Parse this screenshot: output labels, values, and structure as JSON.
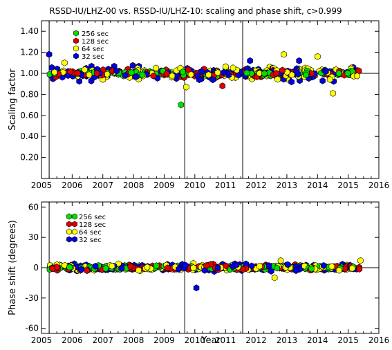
{
  "chart_data": {
    "title": "RSSD-IU/LHZ-00 vs. RSSD-IU/LHZ-10: scaling and phase shift, c>0.999",
    "xlabel": "Year",
    "x_range": [
      2005.0,
      2016.0
    ],
    "x_ticks": [
      2005,
      2006,
      2007,
      2008,
      2009,
      2010,
      2011,
      2012,
      2013,
      2014,
      2015,
      2016
    ],
    "x_tick_labels": [
      "2005",
      "2006",
      "2007",
      "2008",
      "2009",
      "2010",
      "2011",
      "2012",
      "2013",
      "2014",
      "2015",
      "2016"
    ],
    "event_lines_x": [
      2005.25,
      2009.67,
      2011.56
    ],
    "data_x_range": [
      2005.25,
      2015.4
    ],
    "series_colors": {
      "256 sec": "#00e000",
      "128 sec": "#e00000",
      "64 sec": "#ffff00",
      "32 sec": "#0000e0"
    },
    "legend_order": [
      "256 sec",
      "128 sec",
      "64 sec",
      "32 sec"
    ],
    "legend_labels": [
      "256 sec",
      "128 sec",
      "64 sec",
      "32 sec"
    ],
    "panels": [
      {
        "name": "scaling",
        "type": "scatter",
        "ylabel": "Scaling factor",
        "ylim": [
          0.0,
          1.5
        ],
        "y_ticks": [
          0.2,
          0.4,
          0.6,
          0.8,
          1.0,
          1.2,
          1.4
        ],
        "y_tick_labels": [
          "0.20",
          "0.40",
          "0.60",
          "0.80",
          "1.00",
          "1.20",
          "1.40"
        ],
        "reference_line": 1.0,
        "typical_values": {
          "256 sec": [
            0.97,
            1.03
          ],
          "128 sec": [
            0.95,
            1.05
          ],
          "64 sec": [
            0.92,
            1.08
          ],
          "32 sec": [
            0.9,
            1.1
          ]
        },
        "outliers": [
          {
            "series": "32 sec",
            "x": 2005.25,
            "y": 1.18
          },
          {
            "series": "64 sec",
            "x": 2005.75,
            "y": 1.1
          },
          {
            "series": "256 sec",
            "x": 2009.55,
            "y": 0.7
          },
          {
            "series": "64 sec",
            "x": 2009.72,
            "y": 0.87
          },
          {
            "series": "32 sec",
            "x": 2011.8,
            "y": 1.12
          },
          {
            "series": "64 sec",
            "x": 2012.9,
            "y": 1.18
          },
          {
            "series": "64 sec",
            "x": 2014.0,
            "y": 1.16
          },
          {
            "series": "64 sec",
            "x": 2014.5,
            "y": 0.81
          },
          {
            "series": "32 sec",
            "x": 2013.4,
            "y": 1.12
          },
          {
            "series": "128 sec",
            "x": 2010.9,
            "y": 0.88
          }
        ]
      },
      {
        "name": "phase",
        "type": "scatter",
        "ylabel": "Phase shift (degrees)",
        "ylim": [
          -65,
          65
        ],
        "y_ticks": [
          -60,
          -30,
          0,
          30,
          60
        ],
        "y_tick_labels": [
          "-60",
          "-30",
          "0",
          "30",
          "60"
        ],
        "reference_line": 0,
        "typical_values": {
          "256 sec": [
            -3,
            3
          ],
          "128 sec": [
            -4,
            4
          ],
          "64 sec": [
            -5,
            5
          ],
          "32 sec": [
            -5,
            5
          ]
        },
        "outliers": [
          {
            "series": "32 sec",
            "x": 2010.05,
            "y": -20
          },
          {
            "series": "64 sec",
            "x": 2012.8,
            "y": 7
          },
          {
            "series": "64 sec",
            "x": 2015.4,
            "y": 7
          },
          {
            "series": "64 sec",
            "x": 2012.6,
            "y": -10
          }
        ]
      }
    ]
  }
}
